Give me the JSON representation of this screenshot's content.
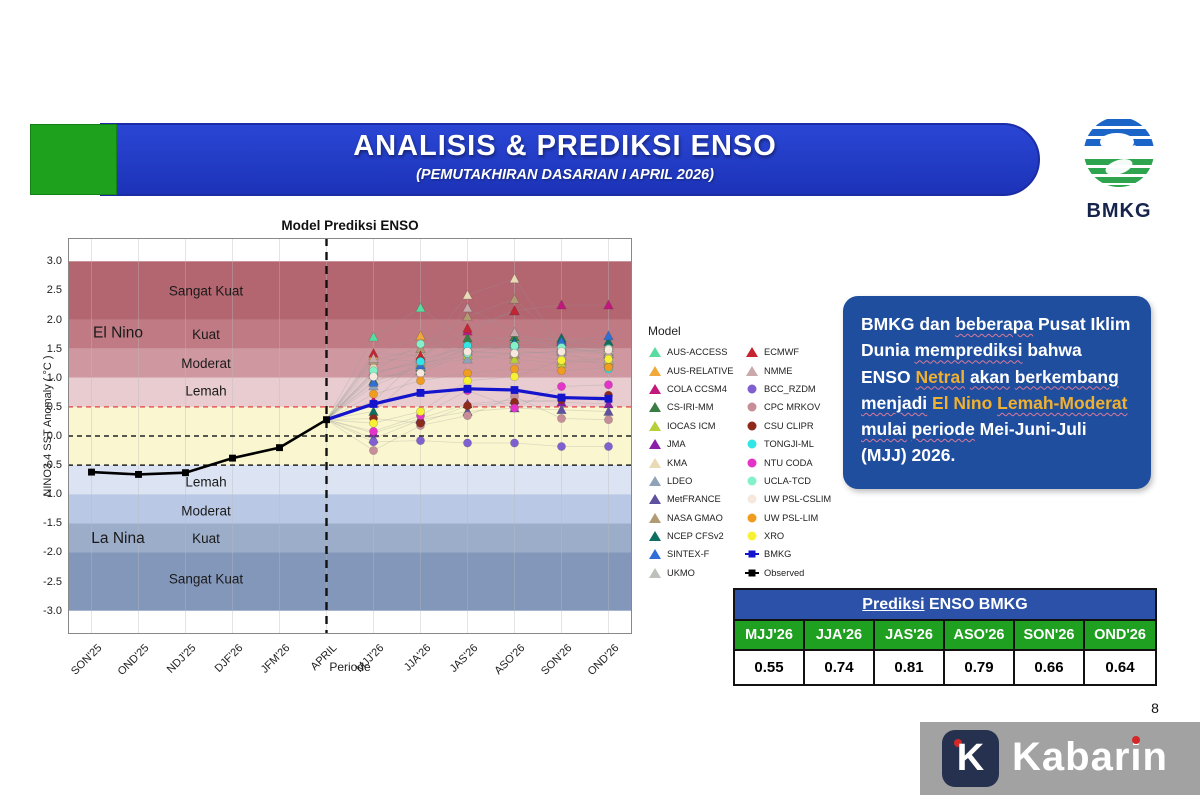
{
  "page": {
    "number": "8"
  },
  "banner": {
    "title": "ANALISIS & PREDIKSI ENSO",
    "subtitle": "(PEMUTAKHIRAN DASARIAN I APRIL 2026)",
    "bg_blue": "#1f39c0",
    "accent_green": "#1ea21e"
  },
  "logo": {
    "org": "BMKG",
    "blue": "#1b64c8",
    "green": "#2ea44f"
  },
  "info_box": {
    "bg": "#1f4e9e",
    "gold": "#f0b030",
    "segments": [
      {
        "t": "BMKG dan ",
        "c": "w"
      },
      {
        "t": "beberapa",
        "c": "w",
        "u": true
      },
      {
        "t": " Pusat Iklim Dunia ",
        "c": "w"
      },
      {
        "t": "memprediksi",
        "c": "w",
        "u": true
      },
      {
        "t": " bahwa ENSO ",
        "c": "w"
      },
      {
        "t": "Netral",
        "c": "g",
        "u": true
      },
      {
        "t": " ",
        "c": "w"
      },
      {
        "t": "akan",
        "c": "w",
        "u": true
      },
      {
        "t": " ",
        "c": "w"
      },
      {
        "t": "berkembang",
        "c": "w",
        "u": true
      },
      {
        "t": " ",
        "c": "w"
      },
      {
        "t": "menjadi",
        "c": "w",
        "u": true
      },
      {
        "t": " ",
        "c": "w"
      },
      {
        "t": "El Nino ",
        "c": "g"
      },
      {
        "t": "Lemah-Moderat",
        "c": "g",
        "u": true
      },
      {
        "t": " ",
        "c": "w"
      },
      {
        "t": "mulai",
        "c": "w",
        "u": true
      },
      {
        "t": " ",
        "c": "w"
      },
      {
        "t": "periode",
        "c": "w",
        "u": true
      },
      {
        "t": " Mei-Juni-Juli (MJJ) 2026.",
        "c": "w"
      }
    ]
  },
  "chart_data": {
    "type": "line+scatter",
    "title": "Model Prediksi ENSO",
    "xlabel": "Periode",
    "ylabel": "NINO3.4 SST Anomaly ( °C )",
    "ylim": [
      -3.4,
      3.4
    ],
    "y_ticks": [
      "3.0",
      "2.5",
      "2.0",
      "1.5",
      "1.0",
      "0.5",
      "0.0",
      "-0.5",
      "-1.0",
      "-1.5",
      "-2.0",
      "-2.5",
      "-3.0"
    ],
    "categories": [
      "SON'25",
      "OND'25",
      "NDJ'25",
      "DJF'26",
      "JFM'26",
      "APRIL",
      "MJJ'26",
      "JJA'26",
      "JAS'26",
      "ASO'26",
      "SON'26",
      "OND'26"
    ],
    "forecast_start_index": 5,
    "grid": true,
    "legend_title": "Model",
    "bands": [
      {
        "from": 2.0,
        "to": 3.0,
        "color": "#b36570",
        "label": "Sangat Kuat",
        "label_v": 2.5
      },
      {
        "from": 1.5,
        "to": 2.0,
        "color": "#c07a84",
        "label": "Kuat",
        "label_v": 1.75
      },
      {
        "from": 1.0,
        "to": 1.5,
        "color": "#cf98a0",
        "label": "Moderat",
        "label_v": 1.25
      },
      {
        "from": 0.5,
        "to": 1.0,
        "color": "#e8ccd0",
        "label": "Lemah",
        "label_v": 0.78
      },
      {
        "from": -0.5,
        "to": 0.5,
        "color": "#faf6cf",
        "label": "",
        "label_v": 0
      },
      {
        "from": -1.0,
        "to": -0.5,
        "color": "#dce4f4",
        "label": "Lemah",
        "label_v": -0.78
      },
      {
        "from": -1.5,
        "to": -1.0,
        "color": "#b9c8e4",
        "label": "Moderat",
        "label_v": -1.28
      },
      {
        "from": -2.0,
        "to": -1.5,
        "color": "#9cadca",
        "label": "Kuat",
        "label_v": -1.75
      },
      {
        "from": -3.0,
        "to": -2.0,
        "color": "#8397bb",
        "label": "Sangat Kuat",
        "label_v": -2.45
      }
    ],
    "side_labels": [
      {
        "text": "El Nino",
        "v": 1.78
      },
      {
        "text": "La Nina",
        "v": -1.75
      }
    ],
    "guides": [
      {
        "v": 0.5,
        "color": "#e85a5a"
      },
      {
        "v": 0.0,
        "color": "#222222"
      },
      {
        "v": -0.5,
        "color": "#222222"
      }
    ],
    "observed": {
      "name": "Observed",
      "color": "#000000",
      "values": [
        -0.62,
        -0.66,
        -0.63,
        -0.38,
        -0.2,
        0.28
      ]
    },
    "bmkg": {
      "name": "BMKG",
      "color": "#1414cc",
      "values": [
        0.55,
        0.74,
        0.81,
        0.79,
        0.66,
        0.64
      ]
    },
    "models": [
      {
        "name": "AUS-ACCESS",
        "marker": "triangle",
        "color": "#58dca0",
        "values": [
          1.7,
          2.2,
          1.6,
          1.68,
          1.5,
          1.45
        ]
      },
      {
        "name": "AUS-RELATIVE",
        "marker": "triangle",
        "color": "#f2a93b",
        "values": [
          1.38,
          1.72,
          1.45,
          1.4,
          1.3,
          1.25
        ]
      },
      {
        "name": "COLA CCSM4",
        "marker": "triangle",
        "color": "#c2187e",
        "values": [
          0.6,
          1.35,
          1.8,
          2.15,
          2.25,
          2.25
        ]
      },
      {
        "name": "CS-IRI-MM",
        "marker": "triangle",
        "color": "#3a7d44",
        "values": [
          0.95,
          1.18,
          1.68,
          1.7,
          1.65,
          1.55
        ]
      },
      {
        "name": "IOCAS ICM",
        "marker": "triangle",
        "color": "#b8cf3a",
        "values": [
          1.1,
          1.25,
          1.38,
          1.32,
          1.25,
          1.3
        ]
      },
      {
        "name": "JMA",
        "marker": "triangle",
        "color": "#8b1fa8",
        "values": [
          0.05,
          0.3,
          0.55,
          0.62,
          0.58,
          0.55
        ]
      },
      {
        "name": "KMA",
        "marker": "triangle",
        "color": "#ead9b5",
        "values": [
          1.22,
          1.42,
          2.42,
          2.7,
          1.55,
          1.48
        ]
      },
      {
        "name": "LDEO",
        "marker": "triangle",
        "color": "#8fa3b8",
        "values": [
          0.86,
          1.2,
          1.32,
          1.42,
          1.45,
          1.4
        ]
      },
      {
        "name": "MetFRANCE",
        "marker": "triangle",
        "color": "#6050a0",
        "values": [
          -0.05,
          0.28,
          0.42,
          0.48,
          0.45,
          0.42
        ]
      },
      {
        "name": "NASA GMAO",
        "marker": "triangle",
        "color": "#b29b72",
        "values": [
          1.3,
          1.5,
          2.05,
          2.35,
          1.62,
          1.52
        ]
      },
      {
        "name": "NCEP CFSv2",
        "marker": "triangle",
        "color": "#0f6e62",
        "values": [
          0.42,
          1.12,
          1.52,
          1.62,
          1.68,
          1.62
        ]
      },
      {
        "name": "SINTEX-F",
        "marker": "triangle",
        "color": "#2f6fd6",
        "values": [
          0.92,
          1.22,
          1.48,
          1.58,
          1.62,
          1.72
        ]
      },
      {
        "name": "UKMO",
        "marker": "triangle",
        "color": "#bcc2ba",
        "values": [
          1.05,
          1.32,
          1.52,
          1.48,
          1.38,
          1.32
        ]
      },
      {
        "name": "ECMWF",
        "marker": "triangle",
        "color": "#c62430",
        "values": [
          1.42,
          1.38,
          1.85,
          2.15,
          1.52,
          1.42
        ]
      },
      {
        "name": "NMME",
        "marker": "triangle",
        "color": "#c9a9ab",
        "values": [
          1.33,
          1.28,
          2.2,
          1.78,
          1.48,
          1.42
        ]
      },
      {
        "name": "BCC_RZDM",
        "marker": "circle",
        "color": "#8060d0",
        "values": [
          -0.1,
          -0.08,
          -0.12,
          -0.12,
          -0.18,
          -0.18
        ]
      },
      {
        "name": "CPC MRKOV",
        "marker": "circle",
        "color": "#c78d98",
        "values": [
          -0.25,
          0.18,
          0.35,
          0.68,
          0.3,
          0.28
        ]
      },
      {
        "name": "CSU CLIPR",
        "marker": "circle",
        "color": "#8e2a1a",
        "values": [
          0.3,
          0.22,
          0.52,
          0.58,
          0.62,
          0.7
        ]
      },
      {
        "name": "TONGJI-ML",
        "marker": "circle",
        "color": "#30e6e6",
        "values": [
          1.08,
          1.28,
          1.55,
          1.52,
          1.48,
          1.15
        ]
      },
      {
        "name": "NTU CODA",
        "marker": "circle",
        "color": "#e433c9",
        "values": [
          0.08,
          0.35,
          0.78,
          0.48,
          0.85,
          0.88
        ]
      },
      {
        "name": "UCLA-TCD",
        "marker": "circle",
        "color": "#84f2c8",
        "values": [
          1.12,
          1.58,
          1.42,
          1.55,
          1.52,
          1.5
        ]
      },
      {
        "name": "UW PSL-CSLIM",
        "marker": "circle",
        "color": "#f7e8de",
        "values": [
          1.02,
          1.08,
          1.45,
          1.42,
          1.45,
          1.48
        ]
      },
      {
        "name": "UW PSL-LIM",
        "marker": "circle",
        "color": "#ef9c20",
        "values": [
          0.72,
          0.95,
          1.08,
          1.15,
          1.12,
          1.18
        ]
      },
      {
        "name": "XRO",
        "marker": "circle",
        "color": "#f6f233",
        "values": [
          0.22,
          0.42,
          0.95,
          1.02,
          1.3,
          1.32
        ]
      }
    ]
  },
  "table": {
    "title_underlined": "Prediksi",
    "title_rest": " ENSO BMKG",
    "columns": [
      "MJJ'26",
      "JJA'26",
      "JAS'26",
      "ASO'26",
      "SON'26",
      "OND'26"
    ],
    "values": [
      "0.55",
      "0.74",
      "0.81",
      "0.79",
      "0.66",
      "0.64"
    ],
    "header_blue": "#2b52a8",
    "header_green": "#1fa020"
  },
  "watermark": {
    "brand": "Kabarin"
  }
}
